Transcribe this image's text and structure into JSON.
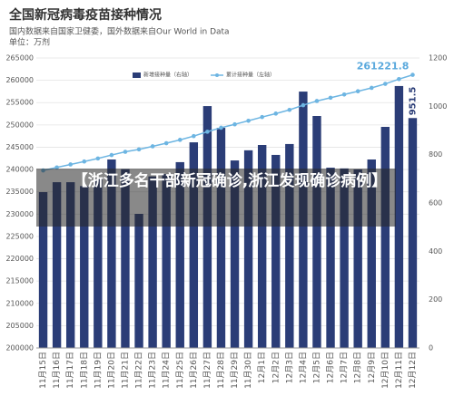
{
  "chart_data": {
    "type": "bar-line",
    "title": "全国新冠病毒疫苗接种情况",
    "subtitle": "国内数据来自国家卫健委，国外数据来自Our World in Data",
    "unit_label": "单位：万剂",
    "overlay_caption": "【浙江多名干部新冠确诊,浙江发现确诊病例】",
    "categories": [
      "11月15日",
      "11月16日",
      "11月17日",
      "11月18日",
      "11月19日",
      "11月20日",
      "11月21日",
      "11月22日",
      "11月23日",
      "11月24日",
      "11月25日",
      "11月26日",
      "11月27日",
      "11月28日",
      "11月29日",
      "11月30日",
      "12月1日",
      "12月2日",
      "12月3日",
      "12月4日",
      "12月5日",
      "12月6日",
      "12月7日",
      "12月8日",
      "12月9日",
      "12月10日",
      "12月11日",
      "12月12日"
    ],
    "series": [
      {
        "name": "新增接种量（右轴）",
        "color": "#2b3d77",
        "axis": "y2",
        "values": [
          645,
          686,
          686,
          670,
          700,
          780,
          740,
          555,
          710,
          720,
          769,
          851,
          1001,
          911,
          776,
          818,
          840,
          799,
          844,
          1061,
          960,
          746,
          743,
          739,
          780,
          915,
          1084,
          951.5
        ]
      },
      {
        "name": "累计接种量（左轴）",
        "color": "#6db5e2",
        "axis": "y",
        "values": [
          239800,
          240470,
          241140,
          241800,
          242480,
          243250,
          243970,
          244510,
          245200,
          245900,
          246650,
          247490,
          248470,
          249370,
          250130,
          250930,
          251760,
          252540,
          253370,
          254420,
          255360,
          256090,
          256820,
          257540,
          258300,
          259200,
          260270,
          261221.8
        ]
      }
    ],
    "ylim": [
      200000,
      265000
    ],
    "yticks": [
      200000,
      205000,
      210000,
      215000,
      220000,
      225000,
      230000,
      235000,
      240000,
      245000,
      250000,
      255000,
      260000,
      265000
    ],
    "y2lim": [
      0,
      1200
    ],
    "y2ticks": [
      0,
      200,
      400,
      600,
      800,
      1000,
      1200
    ],
    "grid": true
  }
}
